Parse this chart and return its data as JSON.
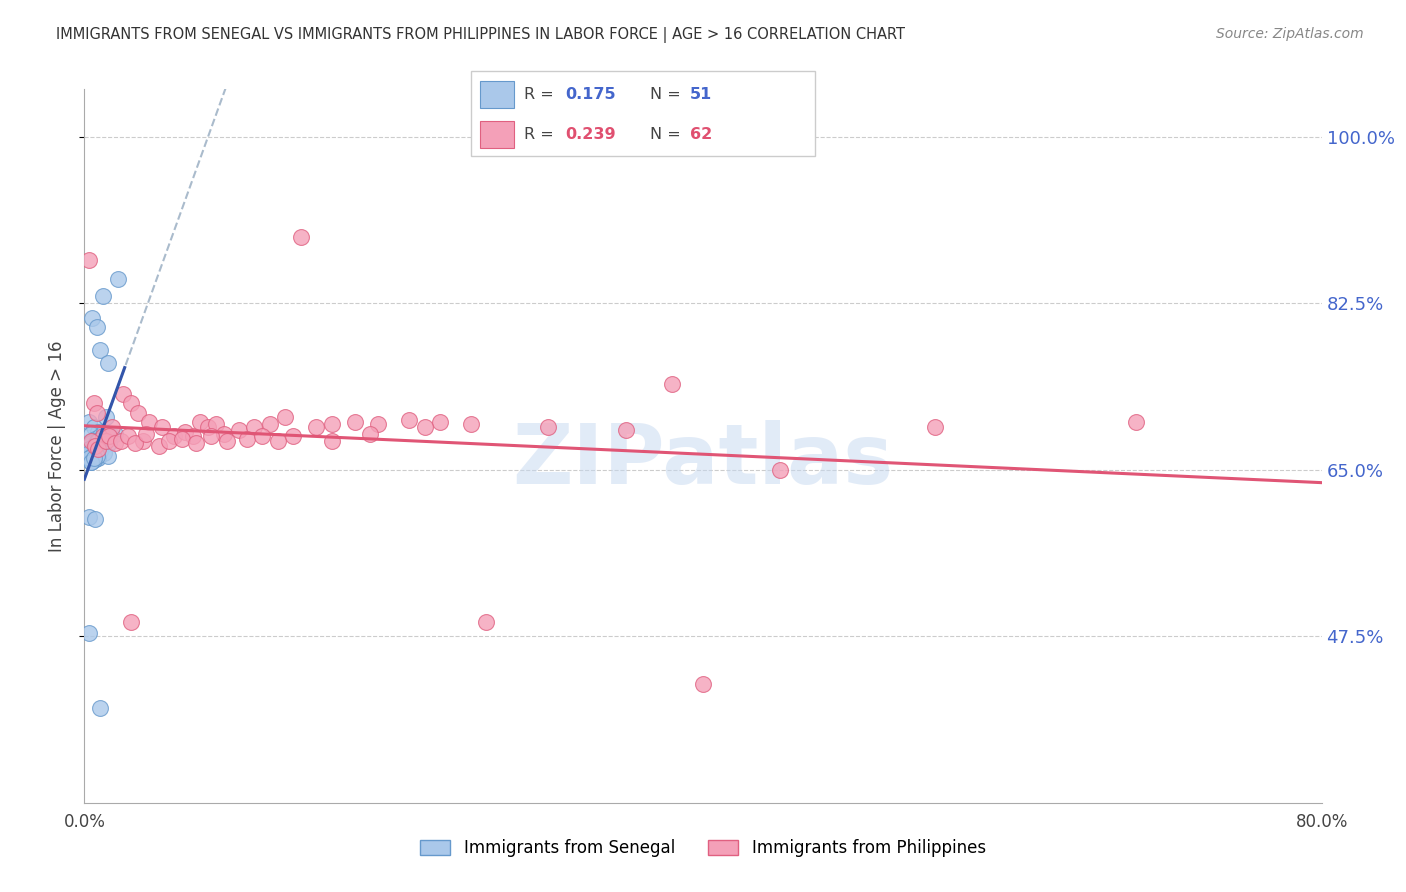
{
  "title": "IMMIGRANTS FROM SENEGAL VS IMMIGRANTS FROM PHILIPPINES IN LABOR FORCE | AGE > 16 CORRELATION CHART",
  "source": "Source: ZipAtlas.com",
  "ylabel": "In Labor Force | Age > 16",
  "ytick_values": [
    1.0,
    0.825,
    0.65,
    0.475
  ],
  "ytick_labels": [
    "100.0%",
    "82.5%",
    "65.0%",
    "47.5%"
  ],
  "xlim": [
    0.0,
    0.8
  ],
  "ylim": [
    0.3,
    1.05
  ],
  "senegal_color": "#aac8ea",
  "senegal_edge_color": "#6699cc",
  "philippines_color": "#f4a0b8",
  "philippines_edge_color": "#e06080",
  "trend_senegal_solid": "#3355aa",
  "trend_senegal_dashed": "#aabbcc",
  "trend_philippines": "#e05575",
  "watermark": "ZIPatlas",
  "watermark_color": "#c5d8f0",
  "R_senegal": "0.175",
  "N_senegal": "51",
  "R_philippines": "0.239",
  "N_philippines": "62",
  "R_color_senegal": "#4466cc",
  "N_color_senegal": "#4466cc",
  "R_color_philippines": "#e05070",
  "N_color_philippines": "#e05070",
  "bottom_legend": [
    "Immigrants from Senegal",
    "Immigrants from Philippines"
  ],
  "senegal_x": [
    0.022,
    0.012,
    0.005,
    0.008,
    0.01,
    0.015,
    0.003,
    0.006,
    0.009,
    0.014,
    0.004,
    0.007,
    0.01,
    0.013,
    0.005,
    0.003,
    0.007,
    0.01,
    0.004,
    0.008,
    0.012,
    0.015,
    0.018,
    0.02,
    0.006,
    0.003,
    0.005,
    0.009,
    0.011,
    0.016,
    0.007,
    0.004,
    0.003,
    0.01,
    0.008,
    0.006,
    0.005,
    0.013,
    0.009,
    0.015,
    0.003,
    0.007,
    0.003,
    0.01,
    0.005,
    0.006,
    0.004,
    0.003,
    0.008,
    0.004,
    0.006
  ],
  "senegal_y": [
    0.85,
    0.833,
    0.81,
    0.8,
    0.776,
    0.762,
    0.7,
    0.695,
    0.69,
    0.705,
    0.688,
    0.682,
    0.685,
    0.69,
    0.68,
    0.675,
    0.678,
    0.682,
    0.678,
    0.68,
    0.675,
    0.682,
    0.685,
    0.688,
    0.675,
    0.672,
    0.67,
    0.68,
    0.672,
    0.678,
    0.668,
    0.665,
    0.668,
    0.67,
    0.662,
    0.665,
    0.66,
    0.668,
    0.662,
    0.665,
    0.6,
    0.598,
    0.478,
    0.4,
    0.665,
    0.66,
    0.658,
    0.662,
    0.665,
    0.658,
    0.662
  ],
  "philippines_x": [
    0.003,
    0.006,
    0.008,
    0.012,
    0.018,
    0.025,
    0.03,
    0.035,
    0.038,
    0.042,
    0.05,
    0.058,
    0.065,
    0.07,
    0.075,
    0.08,
    0.085,
    0.09,
    0.1,
    0.11,
    0.12,
    0.13,
    0.14,
    0.15,
    0.16,
    0.175,
    0.19,
    0.21,
    0.23,
    0.25,
    0.004,
    0.007,
    0.009,
    0.014,
    0.016,
    0.02,
    0.024,
    0.028,
    0.033,
    0.04,
    0.048,
    0.055,
    0.063,
    0.072,
    0.082,
    0.092,
    0.105,
    0.115,
    0.125,
    0.135,
    0.16,
    0.185,
    0.22,
    0.26,
    0.3,
    0.35,
    0.4,
    0.45,
    0.55,
    0.68,
    0.03,
    0.38
  ],
  "philippines_y": [
    0.87,
    0.72,
    0.71,
    0.685,
    0.695,
    0.73,
    0.72,
    0.71,
    0.68,
    0.7,
    0.695,
    0.685,
    0.69,
    0.685,
    0.7,
    0.695,
    0.698,
    0.688,
    0.692,
    0.695,
    0.698,
    0.705,
    0.895,
    0.695,
    0.698,
    0.7,
    0.698,
    0.702,
    0.7,
    0.698,
    0.68,
    0.675,
    0.672,
    0.68,
    0.685,
    0.678,
    0.68,
    0.685,
    0.678,
    0.688,
    0.675,
    0.68,
    0.682,
    0.678,
    0.685,
    0.68,
    0.682,
    0.685,
    0.68,
    0.685,
    0.68,
    0.688,
    0.695,
    0.49,
    0.695,
    0.692,
    0.425,
    0.65,
    0.695,
    0.7,
    0.49,
    0.74
  ]
}
